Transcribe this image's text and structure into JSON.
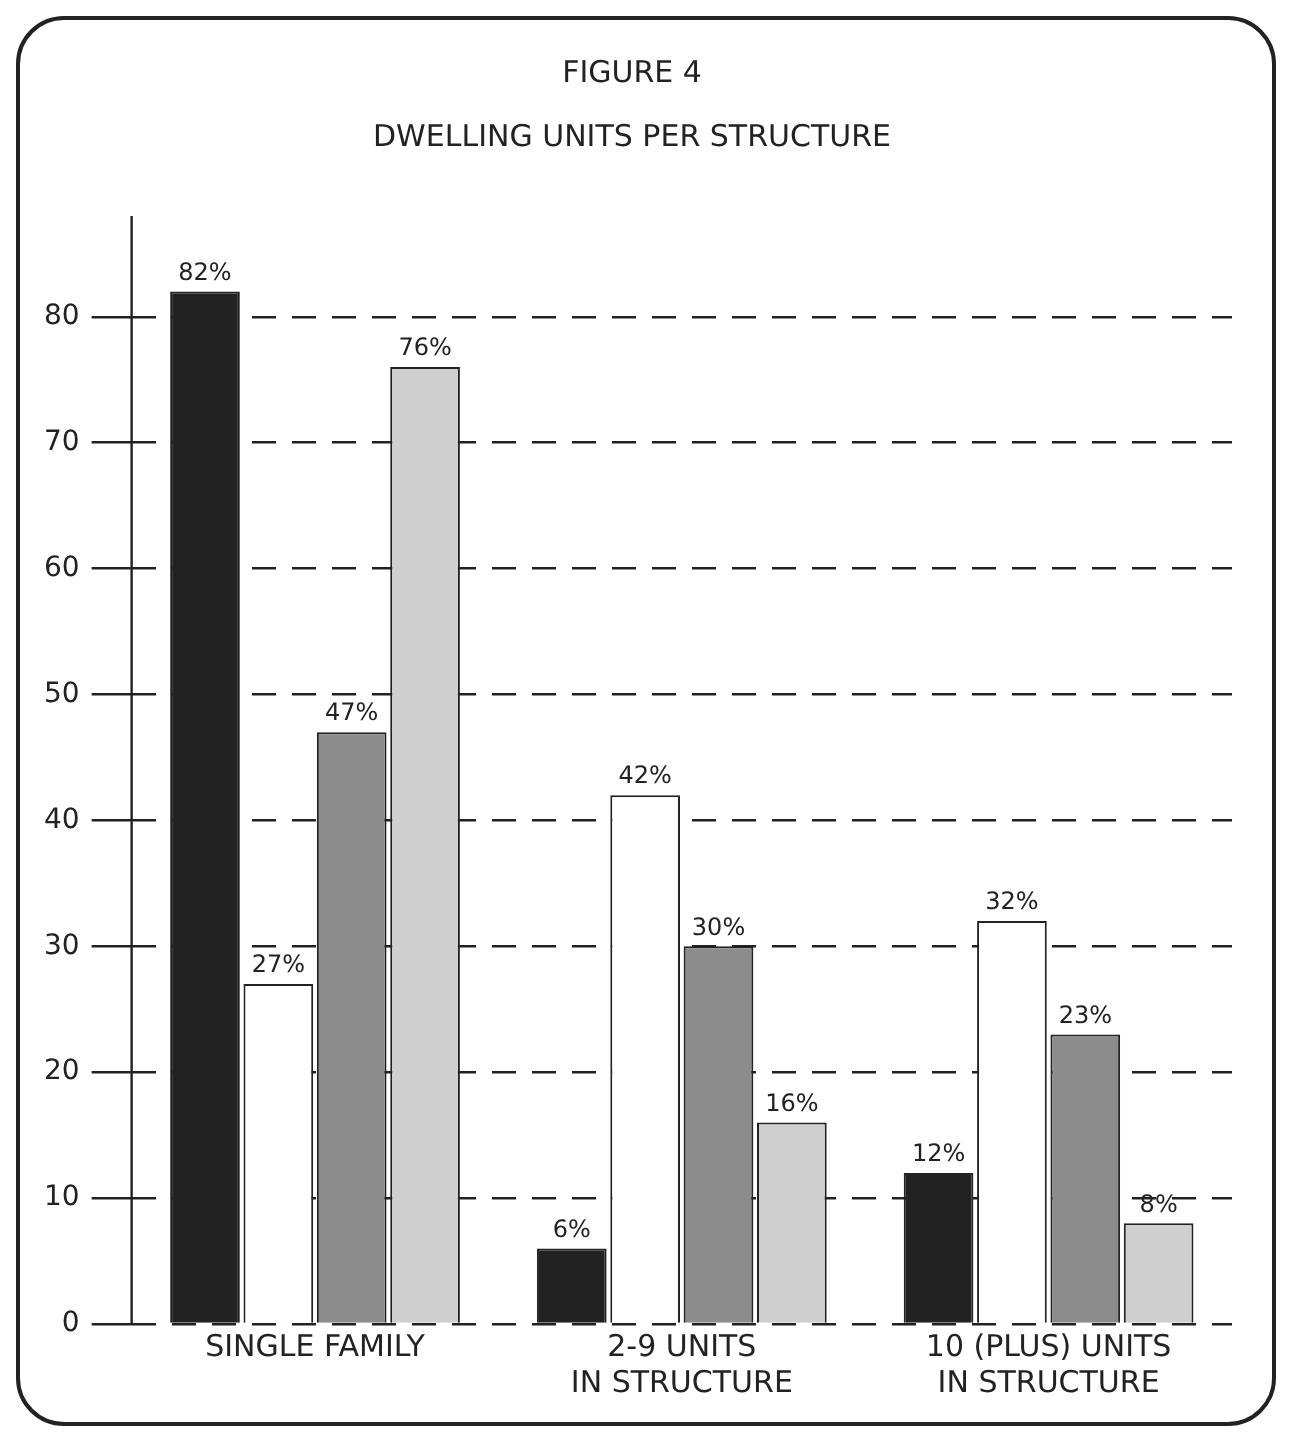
{
  "chart_data": {
    "type": "bar",
    "title": "FIGURE 4",
    "subtitle": "DWELLING UNITS PER STRUCTURE",
    "categories": [
      "SINGLE FAMILY",
      "2-9 UNITS\nIN STRUCTURE",
      "10 (PLUS) UNITS\nIN STRUCTURE"
    ],
    "series": [
      {
        "color": "#222222",
        "values": [
          82,
          6,
          12
        ],
        "value_labels": [
          "82%",
          "6%",
          "12%"
        ]
      },
      {
        "color": "#ffffff",
        "values": [
          27,
          42,
          32
        ],
        "value_labels": [
          "27%",
          "42%",
          "32%"
        ]
      },
      {
        "color": "#8c8c8c",
        "values": [
          47,
          30,
          23
        ],
        "value_labels": [
          "47%",
          "30%",
          "23%"
        ]
      },
      {
        "color": "#cfcfcf",
        "values": [
          76,
          16,
          8
        ],
        "value_labels": [
          "76%",
          "16%",
          "8%"
        ]
      }
    ],
    "ylim": [
      0,
      88
    ],
    "yticks": [
      0,
      10,
      20,
      30,
      40,
      50,
      60,
      70,
      80
    ],
    "grid": "y"
  }
}
